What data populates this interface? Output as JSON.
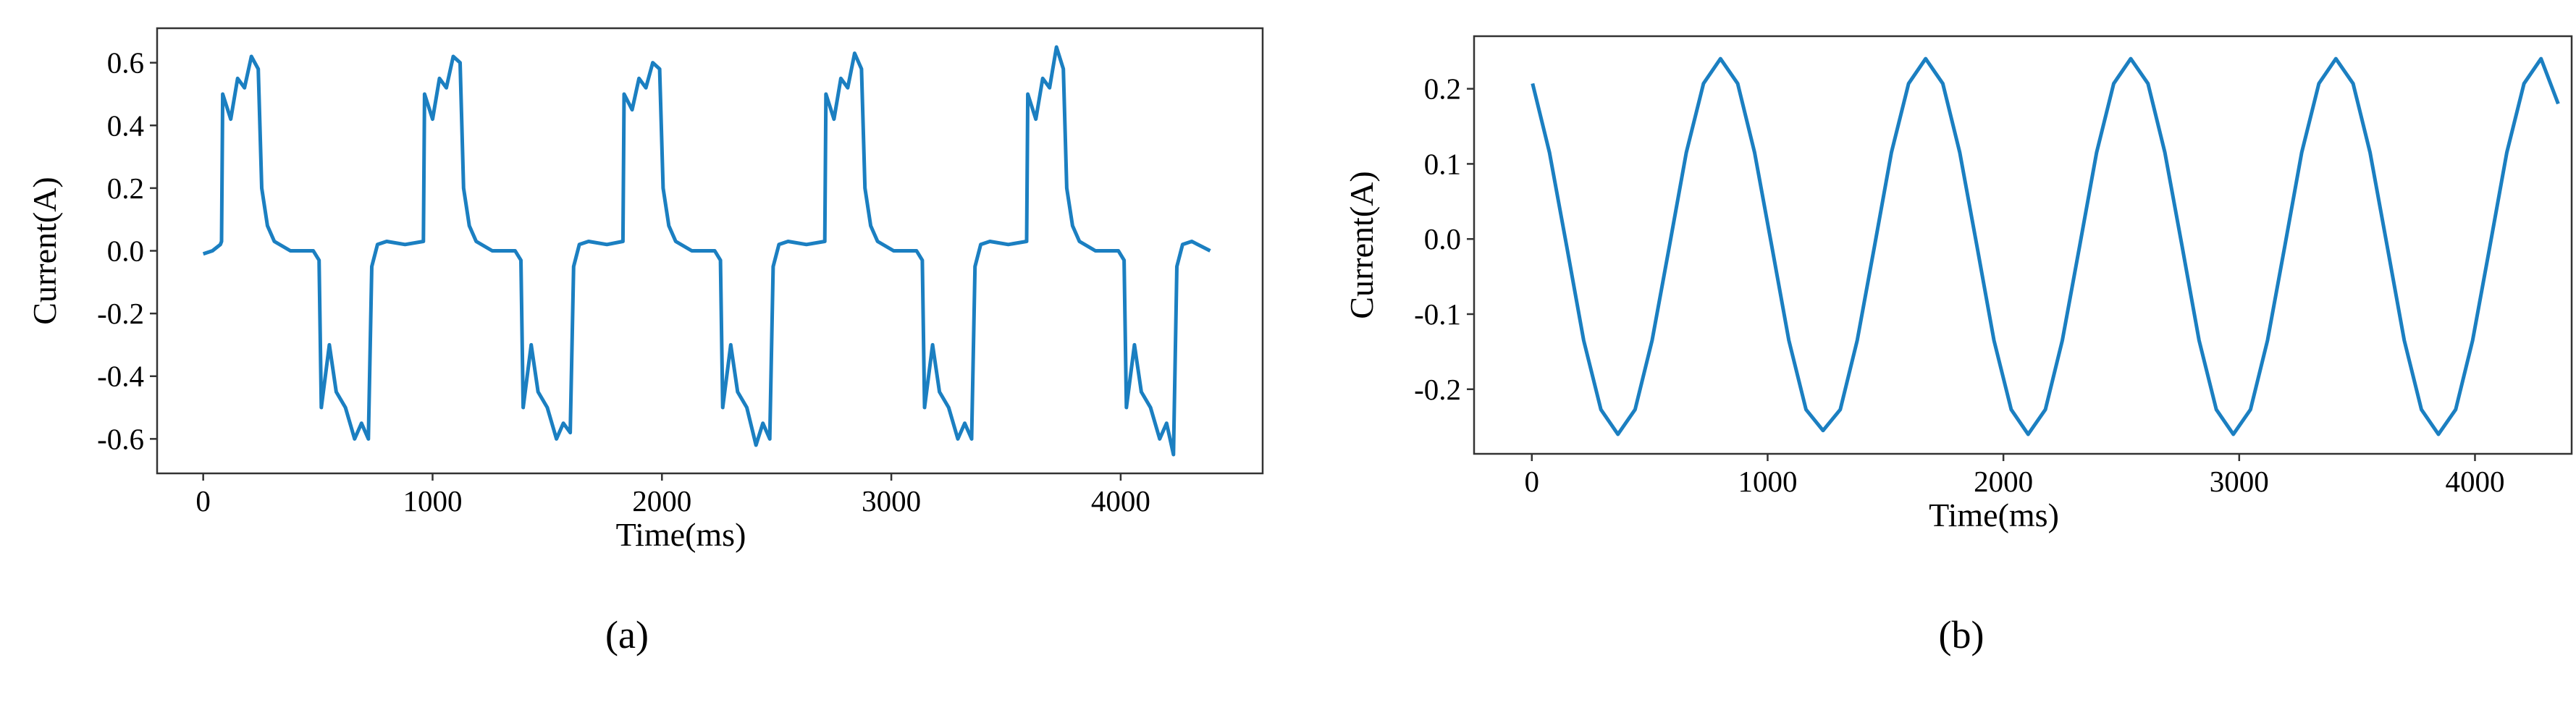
{
  "chart_data": [
    {
      "type": "line",
      "caption": "(a)",
      "xlabel": "Time(ms)",
      "ylabel": "Current(A)",
      "xlim": [
        -201,
        4619
      ],
      "ylim": [
        -0.71,
        0.71
      ],
      "xticks": [
        0,
        1000,
        2000,
        3000,
        4000
      ],
      "yticks": [
        -0.6,
        -0.4,
        -0.2,
        {
          "value": 0,
          "label": "0.0"
        },
        0.2,
        0.4,
        0.6
      ],
      "x": [
        0,
        40,
        75,
        80,
        85,
        120,
        150,
        180,
        210,
        240,
        255,
        280,
        310,
        380,
        480,
        505,
        515,
        550,
        580,
        620,
        660,
        690,
        720,
        735,
        760,
        800,
        880,
        960,
        965,
        1000,
        1030,
        1060,
        1090,
        1120,
        1135,
        1160,
        1190,
        1260,
        1360,
        1385,
        1395,
        1430,
        1460,
        1500,
        1540,
        1570,
        1600,
        1615,
        1640,
        1680,
        1760,
        1830,
        1835,
        1870,
        1900,
        1930,
        1960,
        1990,
        2005,
        2030,
        2060,
        2130,
        2230,
        2255,
        2265,
        2300,
        2330,
        2370,
        2410,
        2440,
        2470,
        2485,
        2510,
        2550,
        2630,
        2710,
        2715,
        2750,
        2780,
        2810,
        2840,
        2870,
        2885,
        2910,
        2940,
        3010,
        3110,
        3135,
        3145,
        3180,
        3210,
        3250,
        3290,
        3320,
        3350,
        3365,
        3390,
        3430,
        3510,
        3590,
        3595,
        3630,
        3660,
        3690,
        3720,
        3750,
        3765,
        3790,
        3820,
        3890,
        3990,
        4015,
        4025,
        4060,
        4090,
        4130,
        4170,
        4200,
        4230,
        4245,
        4270,
        4310,
        4390
      ],
      "series": [
        {
          "color": "#1b7fc1",
          "values": [
            -0.01,
            0.0,
            0.02,
            0.03,
            0.5,
            0.42,
            0.55,
            0.52,
            0.62,
            0.58,
            0.2,
            0.08,
            0.03,
            0.0,
            0.0,
            -0.03,
            -0.5,
            -0.3,
            -0.45,
            -0.5,
            -0.6,
            -0.55,
            -0.6,
            -0.05,
            0.02,
            0.03,
            0.02,
            0.03,
            0.5,
            0.42,
            0.55,
            0.52,
            0.62,
            0.6,
            0.2,
            0.08,
            0.03,
            0.0,
            0.0,
            -0.03,
            -0.5,
            -0.3,
            -0.45,
            -0.5,
            -0.6,
            -0.55,
            -0.58,
            -0.05,
            0.02,
            0.03,
            0.02,
            0.03,
            0.5,
            0.45,
            0.55,
            0.52,
            0.6,
            0.58,
            0.2,
            0.08,
            0.03,
            0.0,
            0.0,
            -0.03,
            -0.5,
            -0.3,
            -0.45,
            -0.5,
            -0.62,
            -0.55,
            -0.6,
            -0.05,
            0.02,
            0.03,
            0.02,
            0.03,
            0.5,
            0.42,
            0.55,
            0.52,
            0.63,
            0.58,
            0.2,
            0.08,
            0.03,
            0.0,
            0.0,
            -0.03,
            -0.5,
            -0.3,
            -0.45,
            -0.5,
            -0.6,
            -0.55,
            -0.6,
            -0.05,
            0.02,
            0.03,
            0.02,
            0.03,
            0.5,
            0.42,
            0.55,
            0.52,
            0.65,
            0.58,
            0.2,
            0.08,
            0.03,
            0.0,
            0.0,
            -0.03,
            -0.5,
            -0.3,
            -0.45,
            -0.5,
            -0.6,
            -0.55,
            -0.65,
            -0.05,
            0.02,
            0.03,
            0.0
          ]
        }
      ]
    },
    {
      "type": "line",
      "caption": "(b)",
      "xlabel": "Time(ms)",
      "ylabel": "Current(A)",
      "xlim": [
        -245,
        4410
      ],
      "ylim": [
        -0.286,
        0.27
      ],
      "xticks": [
        0,
        1000,
        2000,
        3000,
        4000
      ],
      "yticks": [
        -0.2,
        -0.1,
        {
          "value": 0,
          "label": "0.0"
        },
        0.1,
        0.2
      ],
      "x": [
        3,
        75,
        148,
        220,
        293,
        365,
        438,
        510,
        583,
        655,
        728,
        800,
        873,
        945,
        1018,
        1090,
        1163,
        1235,
        1308,
        1380,
        1453,
        1525,
        1598,
        1670,
        1743,
        1815,
        1888,
        1960,
        2033,
        2105,
        2178,
        2250,
        2323,
        2395,
        2468,
        2540,
        2613,
        2685,
        2758,
        2830,
        2903,
        2975,
        3048,
        3120,
        3193,
        3265,
        3338,
        3410,
        3483,
        3555,
        3628,
        3700,
        3773,
        3845,
        3918,
        3990,
        4063,
        4135,
        4208,
        4280,
        4353
      ],
      "series": [
        {
          "color": "#1b7fc1",
          "values": [
            0.207,
            0.115,
            -0.01,
            -0.135,
            -0.227,
            -0.26,
            -0.227,
            -0.135,
            -0.01,
            0.115,
            0.207,
            0.24,
            0.207,
            0.115,
            -0.01,
            -0.135,
            -0.227,
            -0.255,
            -0.227,
            -0.135,
            -0.01,
            0.115,
            0.207,
            0.24,
            0.207,
            0.115,
            -0.01,
            -0.135,
            -0.227,
            -0.26,
            -0.227,
            -0.135,
            -0.01,
            0.115,
            0.207,
            0.24,
            0.207,
            0.115,
            -0.01,
            -0.135,
            -0.227,
            -0.26,
            -0.227,
            -0.135,
            -0.01,
            0.115,
            0.207,
            0.24,
            0.207,
            0.115,
            -0.01,
            -0.135,
            -0.227,
            -0.26,
            -0.227,
            -0.135,
            -0.01,
            0.115,
            0.207,
            0.24,
            0.18
          ]
        }
      ]
    }
  ]
}
